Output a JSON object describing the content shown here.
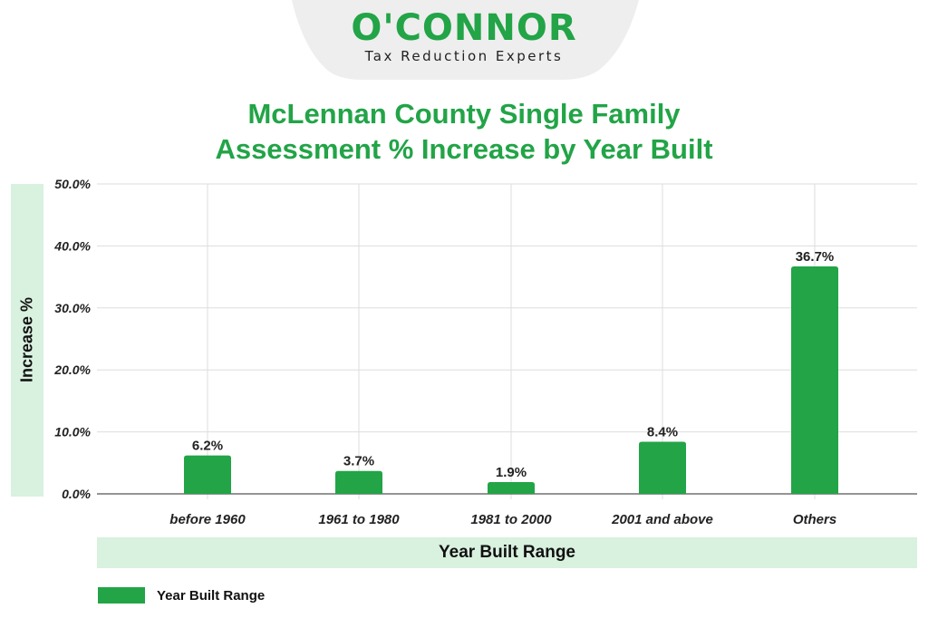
{
  "logo": {
    "name": "O'CONNOR",
    "tagline": "Tax Reduction Experts"
  },
  "colors": {
    "brand_green": "#22a447",
    "band_green": "#d9f1df",
    "grid": "#dddddd"
  },
  "chart_data": {
    "type": "bar",
    "title_line1": "McLennan County Single Family",
    "title_line2": "Assessment % Increase by Year Built",
    "xlabel": "Year Built Range",
    "ylabel": "Increase %",
    "categories": [
      "before 1960",
      "1961 to 1980",
      "1981 to 2000",
      "2001 and above",
      "Others"
    ],
    "values": [
      6.2,
      3.7,
      1.9,
      8.4,
      36.7
    ],
    "value_labels": [
      "6.2%",
      "3.7%",
      "1.9%",
      "8.4%",
      "36.7%"
    ],
    "ylim": [
      0,
      50
    ],
    "yticks": [
      0,
      10,
      20,
      30,
      40,
      50
    ],
    "ytick_labels": [
      "0.0%",
      "10.0%",
      "20.0%",
      "30.0%",
      "40.0%",
      "50.0%"
    ],
    "legend": [
      "Year Built Range"
    ],
    "legend_position": "bottom-left",
    "grid": true
  }
}
